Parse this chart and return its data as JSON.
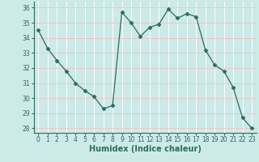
{
  "x": [
    0,
    1,
    2,
    3,
    4,
    5,
    6,
    7,
    8,
    9,
    10,
    11,
    12,
    13,
    14,
    15,
    16,
    17,
    18,
    19,
    20,
    21,
    22,
    23
  ],
  "y": [
    34.5,
    33.3,
    32.5,
    31.8,
    31.0,
    30.5,
    30.1,
    29.3,
    29.5,
    35.7,
    35.0,
    34.1,
    34.7,
    34.9,
    35.9,
    35.3,
    35.6,
    35.4,
    33.2,
    32.2,
    31.8,
    30.7,
    28.7,
    28.0
  ],
  "xlabel": "Humidex (Indice chaleur)",
  "xlim": [
    -0.5,
    23.5
  ],
  "ylim": [
    27.7,
    36.4
  ],
  "yticks": [
    28,
    29,
    30,
    31,
    32,
    33,
    34,
    35,
    36
  ],
  "xticks": [
    0,
    1,
    2,
    3,
    4,
    5,
    6,
    7,
    8,
    9,
    10,
    11,
    12,
    13,
    14,
    15,
    16,
    17,
    18,
    19,
    20,
    21,
    22,
    23
  ],
  "line_color": "#2e6b5e",
  "marker": "D",
  "marker_size": 2.5,
  "bg_color": "#cceae7",
  "grid_color": "#e8c8c8",
  "grid_color2": "#ffffff",
  "tick_fontsize": 5.5,
  "xlabel_fontsize": 7
}
